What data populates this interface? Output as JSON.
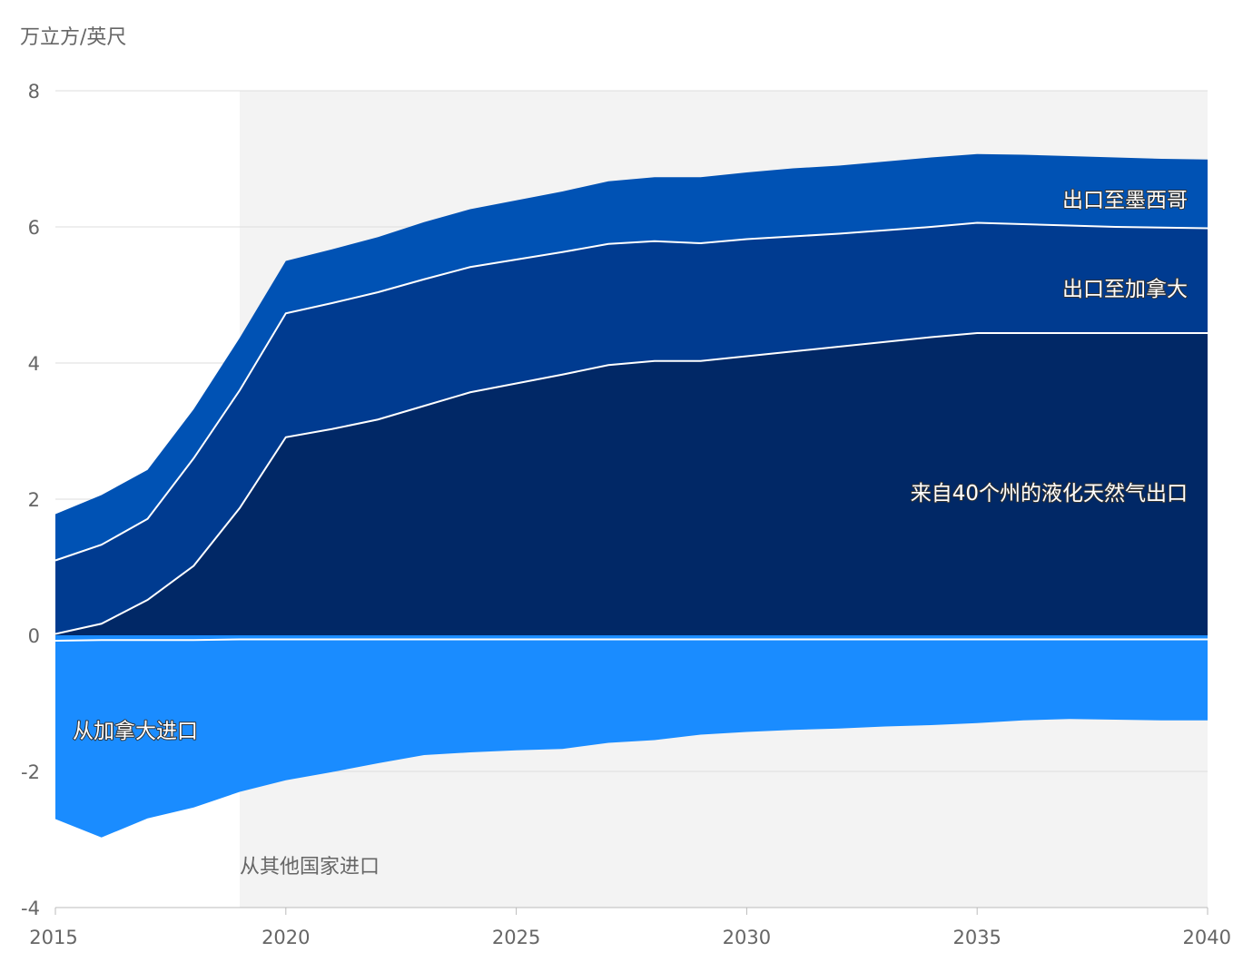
{
  "chart_data": {
    "type": "area",
    "ylabel": "万立方/英尺",
    "xlim": [
      2015,
      2040
    ],
    "ylim": [
      -4,
      8
    ],
    "yticks": [
      -4,
      -2,
      0,
      2,
      4,
      6,
      8
    ],
    "xticks": [
      2015,
      2020,
      2025,
      2030,
      2035,
      2040
    ],
    "projection_start": 2019,
    "grid": true,
    "x": [
      2015,
      2016,
      2017,
      2018,
      2019,
      2020,
      2021,
      2022,
      2023,
      2024,
      2025,
      2026,
      2027,
      2028,
      2029,
      2030,
      2031,
      2032,
      2033,
      2034,
      2035,
      2036,
      2037,
      2038,
      2039,
      2040
    ],
    "series": [
      {
        "name": "来自40个州的液化天然气出口",
        "color": "#012866",
        "values": [
          0.02,
          0.17,
          0.52,
          1.02,
          1.87,
          2.91,
          3.03,
          3.17,
          3.37,
          3.57,
          3.7,
          3.83,
          3.97,
          4.03,
          4.03,
          4.1,
          4.17,
          4.24,
          4.31,
          4.38,
          4.44,
          4.44,
          4.44,
          4.44,
          4.44,
          4.44
        ]
      },
      {
        "name": "出口至加拿大",
        "color": "#003b90",
        "values": [
          1.08,
          1.16,
          1.19,
          1.58,
          1.73,
          1.82,
          1.85,
          1.87,
          1.86,
          1.84,
          1.82,
          1.8,
          1.78,
          1.76,
          1.73,
          1.72,
          1.69,
          1.66,
          1.64,
          1.62,
          1.62,
          1.6,
          1.58,
          1.56,
          1.55,
          1.54
        ]
      },
      {
        "name": "出口至墨西哥",
        "color": "#0052b4",
        "values": [
          0.68,
          0.73,
          0.72,
          0.72,
          0.77,
          0.77,
          0.79,
          0.81,
          0.84,
          0.85,
          0.87,
          0.89,
          0.92,
          0.94,
          0.97,
          0.98,
          1.0,
          1.0,
          1.01,
          1.02,
          1.01,
          1.02,
          1.02,
          1.02,
          1.01,
          1.01
        ]
      },
      {
        "name": "从加拿大进口",
        "color": "#1a8cff",
        "values": [
          -2.62,
          -2.9,
          -2.62,
          -2.46,
          -2.24,
          -2.07,
          -1.95,
          -1.82,
          -1.7,
          -1.66,
          -1.63,
          -1.61,
          -1.52,
          -1.48,
          -1.4,
          -1.36,
          -1.33,
          -1.31,
          -1.28,
          -1.26,
          -1.23,
          -1.19,
          -1.17,
          -1.18,
          -1.19,
          -1.19
        ]
      },
      {
        "name": "从其他国家进口",
        "color": "#1a8cff",
        "values": [
          -0.08,
          -0.07,
          -0.07,
          -0.07,
          -0.06,
          -0.06,
          -0.06,
          -0.06,
          -0.06,
          -0.06,
          -0.06,
          -0.06,
          -0.06,
          -0.06,
          -0.06,
          -0.06,
          -0.06,
          -0.06,
          -0.06,
          -0.06,
          -0.06,
          -0.06,
          -0.06,
          -0.06,
          -0.06,
          -0.06
        ]
      }
    ]
  }
}
